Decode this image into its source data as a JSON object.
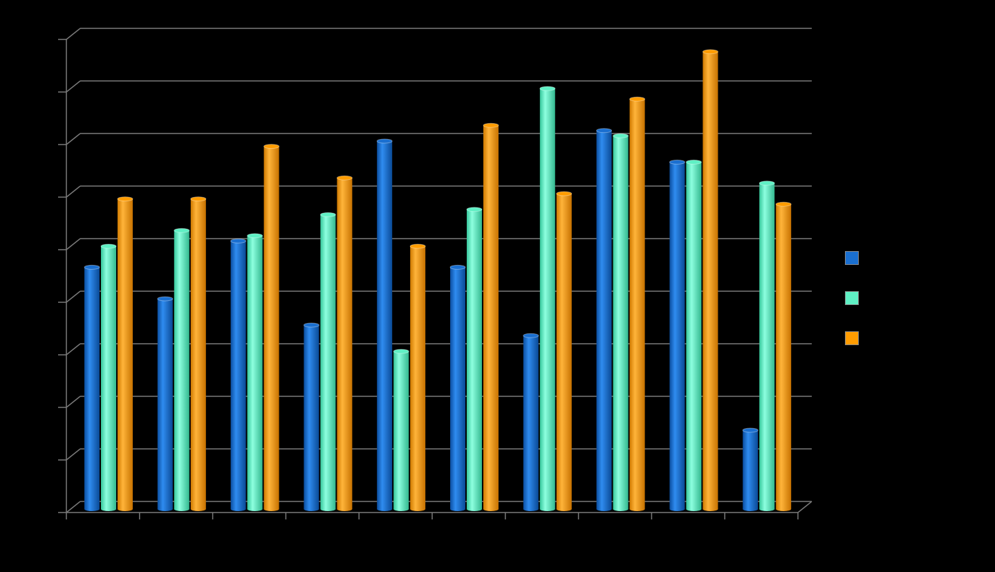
{
  "chart_data": {
    "type": "bar",
    "categories": [
      "",
      "",
      "",
      "",
      "",
      "",
      "",
      "",
      "",
      ""
    ],
    "series": [
      {
        "color": "#1a6fd0",
        "values": [
          46,
          40,
          51,
          35,
          70,
          46,
          33,
          72,
          66,
          15
        ]
      },
      {
        "color": "#5ff0c4",
        "values": [
          50,
          53,
          52,
          56,
          30,
          57,
          80,
          71,
          66,
          62
        ]
      },
      {
        "color": "#ff9c00",
        "values": [
          59,
          59,
          69,
          63,
          50,
          73,
          60,
          78,
          87,
          58
        ]
      }
    ],
    "title": "",
    "xlabel": "",
    "ylabel": "",
    "ylim": [
      0,
      90
    ],
    "grid": true,
    "legend_position": "right"
  }
}
